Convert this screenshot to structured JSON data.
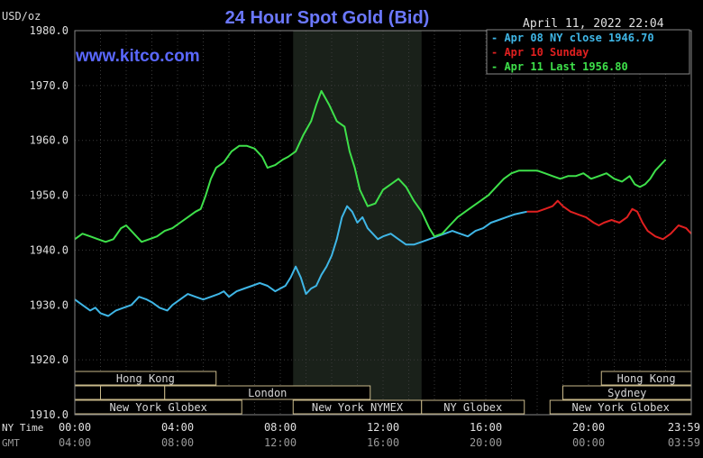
{
  "chart_data": {
    "type": "line",
    "title": "24 Hour Spot Gold (Bid)",
    "unit_label": "USD/oz",
    "timestamp": "April 11, 2022 22:04",
    "watermark": "www.kitco.com",
    "ylim": [
      1910,
      1980
    ],
    "y_ticks": [
      "1980.0",
      "1970.0",
      "1960.0",
      "1950.0",
      "1940.0",
      "1930.0",
      "1920.0",
      "1910.0"
    ],
    "x_axis_rows": [
      {
        "label": "NY Time",
        "ticks": [
          "00:00",
          "04:00",
          "08:00",
          "12:00",
          "16:00",
          "20:00",
          "23:59"
        ]
      },
      {
        "label": "GMT",
        "ticks": [
          "04:00",
          "08:00",
          "12:00",
          "16:00",
          "20:00",
          "00:00",
          "03:59"
        ]
      }
    ],
    "x_range_hours": [
      0,
      24
    ],
    "grid": true,
    "legend_position": "top-right",
    "shaded_region_hours": [
      8.5,
      13.5
    ],
    "markets": [
      {
        "name": "Hong Kong",
        "row": 0,
        "start": 0,
        "end": 5.5
      },
      {
        "name": "Hong Kong",
        "row": 0,
        "start": 20.5,
        "end": 24
      },
      {
        "name": "",
        "row": 1,
        "start": 0,
        "end": 1
      },
      {
        "name": "",
        "row": 1,
        "start": 1,
        "end": 3.5
      },
      {
        "name": "London",
        "row": 1,
        "start": 3.5,
        "end": 11.5
      },
      {
        "name": "Sydney",
        "row": 1,
        "start": 19,
        "end": 24
      },
      {
        "name": "New York Globex",
        "row": 2,
        "start": 0,
        "end": 6.5
      },
      {
        "name": "New York NYMEX",
        "row": 2,
        "start": 8.5,
        "end": 13.5
      },
      {
        "name": "NY Globex",
        "row": 2,
        "start": 13.5,
        "end": 17.5
      },
      {
        "name": "New York Globex",
        "row": 2,
        "start": 18.5,
        "end": 24
      }
    ],
    "series": [
      {
        "name": "Apr 08 NY close 1946.70",
        "color": "#3fb6e6",
        "points": [
          [
            0,
            1931
          ],
          [
            0.3,
            1930
          ],
          [
            0.6,
            1929
          ],
          [
            0.8,
            1929.5
          ],
          [
            1.0,
            1928.5
          ],
          [
            1.3,
            1928
          ],
          [
            1.6,
            1929
          ],
          [
            1.9,
            1929.5
          ],
          [
            2.2,
            1930
          ],
          [
            2.5,
            1931.5
          ],
          [
            2.8,
            1931
          ],
          [
            3.0,
            1930.5
          ],
          [
            3.3,
            1929.5
          ],
          [
            3.6,
            1929
          ],
          [
            3.8,
            1930
          ],
          [
            4.1,
            1931
          ],
          [
            4.4,
            1932
          ],
          [
            4.7,
            1931.5
          ],
          [
            5.0,
            1931
          ],
          [
            5.3,
            1931.5
          ],
          [
            5.6,
            1932
          ],
          [
            5.8,
            1932.5
          ],
          [
            6.0,
            1931.5
          ],
          [
            6.3,
            1932.5
          ],
          [
            6.6,
            1933
          ],
          [
            6.9,
            1933.5
          ],
          [
            7.2,
            1934
          ],
          [
            7.5,
            1933.5
          ],
          [
            7.8,
            1932.5
          ],
          [
            8.0,
            1933
          ],
          [
            8.2,
            1933.5
          ],
          [
            8.4,
            1935
          ],
          [
            8.6,
            1937
          ],
          [
            8.8,
            1935
          ],
          [
            9.0,
            1932
          ],
          [
            9.2,
            1933
          ],
          [
            9.4,
            1933.5
          ],
          [
            9.6,
            1935.5
          ],
          [
            9.8,
            1937
          ],
          [
            10.0,
            1939
          ],
          [
            10.2,
            1942
          ],
          [
            10.4,
            1946
          ],
          [
            10.6,
            1948
          ],
          [
            10.8,
            1947
          ],
          [
            11.0,
            1945
          ],
          [
            11.2,
            1946
          ],
          [
            11.4,
            1944
          ],
          [
            11.6,
            1943
          ],
          [
            11.8,
            1942
          ],
          [
            12.0,
            1942.5
          ],
          [
            12.3,
            1943
          ],
          [
            12.6,
            1942
          ],
          [
            12.9,
            1941
          ],
          [
            13.2,
            1941
          ],
          [
            13.5,
            1941.5
          ],
          [
            13.8,
            1942
          ],
          [
            14.1,
            1942.5
          ],
          [
            14.4,
            1943
          ],
          [
            14.7,
            1943.5
          ],
          [
            15.0,
            1943
          ],
          [
            15.3,
            1942.5
          ],
          [
            15.6,
            1943.5
          ],
          [
            15.9,
            1944
          ],
          [
            16.2,
            1945
          ],
          [
            16.5,
            1945.5
          ],
          [
            16.8,
            1946
          ],
          [
            17.1,
            1946.5
          ],
          [
            17.4,
            1946.8
          ],
          [
            17.6,
            1947
          ]
        ]
      },
      {
        "name": "Apr 10 Sunday",
        "color": "#e02020",
        "points": [
          [
            17.6,
            1947
          ],
          [
            18.0,
            1947
          ],
          [
            18.3,
            1947.5
          ],
          [
            18.6,
            1948
          ],
          [
            18.8,
            1949
          ],
          [
            19.0,
            1948
          ],
          [
            19.3,
            1947
          ],
          [
            19.6,
            1946.5
          ],
          [
            19.9,
            1946
          ],
          [
            20.2,
            1945
          ],
          [
            20.4,
            1944.5
          ],
          [
            20.6,
            1945
          ],
          [
            20.9,
            1945.5
          ],
          [
            21.2,
            1945
          ],
          [
            21.5,
            1946
          ],
          [
            21.7,
            1947.5
          ],
          [
            21.9,
            1947
          ],
          [
            22.1,
            1945
          ],
          [
            22.3,
            1943.5
          ],
          [
            22.6,
            1942.5
          ],
          [
            22.9,
            1942
          ],
          [
            23.2,
            1943
          ],
          [
            23.5,
            1944.5
          ],
          [
            23.8,
            1944
          ],
          [
            24.0,
            1943
          ]
        ]
      },
      {
        "name": "Apr 11 Last 1956.80",
        "color": "#3ee04a",
        "points": [
          [
            0,
            1942
          ],
          [
            0.3,
            1943
          ],
          [
            0.6,
            1942.5
          ],
          [
            0.9,
            1942
          ],
          [
            1.2,
            1941.5
          ],
          [
            1.5,
            1942
          ],
          [
            1.8,
            1944
          ],
          [
            2.0,
            1944.5
          ],
          [
            2.3,
            1943
          ],
          [
            2.6,
            1941.5
          ],
          [
            2.9,
            1942
          ],
          [
            3.2,
            1942.5
          ],
          [
            3.5,
            1943.5
          ],
          [
            3.8,
            1944
          ],
          [
            4.1,
            1945
          ],
          [
            4.4,
            1946
          ],
          [
            4.7,
            1947
          ],
          [
            4.9,
            1947.5
          ],
          [
            5.1,
            1950
          ],
          [
            5.3,
            1953
          ],
          [
            5.5,
            1955
          ],
          [
            5.8,
            1956
          ],
          [
            6.1,
            1958
          ],
          [
            6.4,
            1959
          ],
          [
            6.7,
            1959
          ],
          [
            7.0,
            1958.5
          ],
          [
            7.3,
            1957
          ],
          [
            7.5,
            1955
          ],
          [
            7.8,
            1955.5
          ],
          [
            8.1,
            1956.5
          ],
          [
            8.3,
            1957
          ],
          [
            8.6,
            1958
          ],
          [
            8.9,
            1961
          ],
          [
            9.2,
            1963.5
          ],
          [
            9.4,
            1966.5
          ],
          [
            9.6,
            1969
          ],
          [
            9.9,
            1966.5
          ],
          [
            10.2,
            1963.5
          ],
          [
            10.5,
            1962.5
          ],
          [
            10.7,
            1958
          ],
          [
            10.9,
            1955
          ],
          [
            11.1,
            1951
          ],
          [
            11.4,
            1948
          ],
          [
            11.7,
            1948.5
          ],
          [
            12.0,
            1951
          ],
          [
            12.3,
            1952
          ],
          [
            12.6,
            1953
          ],
          [
            12.9,
            1951.5
          ],
          [
            13.2,
            1949
          ],
          [
            13.5,
            1947
          ],
          [
            13.8,
            1944
          ],
          [
            14.0,
            1942.5
          ],
          [
            14.3,
            1943
          ],
          [
            14.6,
            1944.5
          ],
          [
            14.9,
            1946
          ],
          [
            15.2,
            1947
          ],
          [
            15.5,
            1948
          ],
          [
            15.8,
            1949
          ],
          [
            16.1,
            1950
          ],
          [
            16.4,
            1951.5
          ],
          [
            16.7,
            1953
          ],
          [
            17.0,
            1954
          ],
          [
            17.3,
            1954.5
          ],
          [
            17.6,
            1954.5
          ],
          [
            18.0,
            1954.5
          ],
          [
            18.3,
            1954
          ],
          [
            18.6,
            1953.5
          ],
          [
            18.9,
            1953
          ],
          [
            19.2,
            1953.5
          ],
          [
            19.5,
            1953.5
          ],
          [
            19.8,
            1954
          ],
          [
            20.1,
            1953
          ],
          [
            20.4,
            1953.5
          ],
          [
            20.7,
            1954
          ],
          [
            21.0,
            1953
          ],
          [
            21.3,
            1952.5
          ],
          [
            21.6,
            1953.5
          ],
          [
            21.8,
            1952
          ],
          [
            22.0,
            1951.5
          ],
          [
            22.2,
            1952
          ],
          [
            22.4,
            1953
          ],
          [
            22.6,
            1954.5
          ],
          [
            22.8,
            1955.5
          ],
          [
            23.0,
            1956.5
          ]
        ]
      }
    ]
  }
}
